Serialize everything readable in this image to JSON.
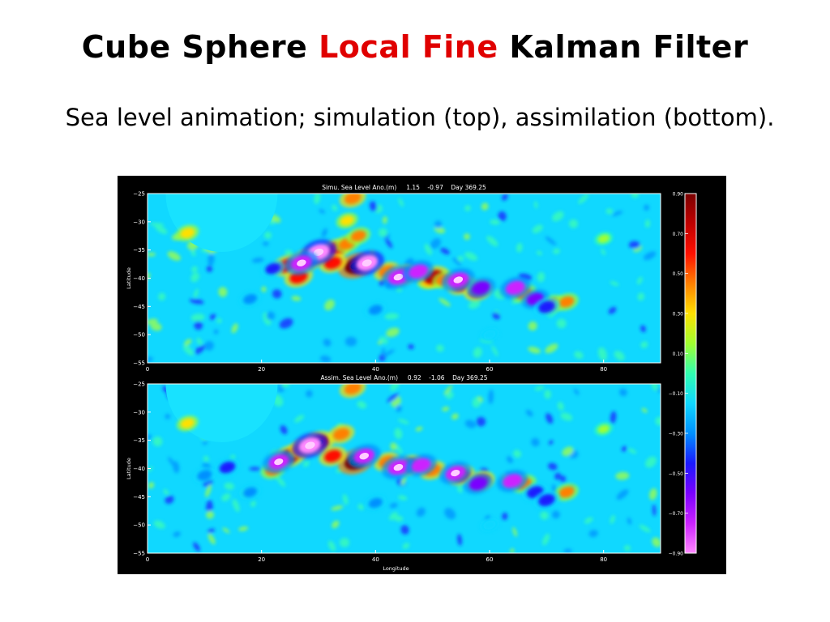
{
  "slide": {
    "title_part1": "Cube Sphere",
    "title_highlight": "Local Fine",
    "title_part2": "Kalman Filter",
    "subtitle": "Sea level animation; simulation (top), assimilation (bottom).",
    "highlight_color": "#e00000"
  },
  "chart_data": [
    {
      "type": "heatmap",
      "title": "Simu. Sea Level Ano.(m)     1.15    -0.97    Day 369.25",
      "xlabel": "",
      "ylabel": "Latitude",
      "xlim": [
        0,
        90
      ],
      "ylim": [
        -55,
        -25
      ],
      "x_ticks": [
        0,
        20,
        40,
        60,
        80
      ],
      "y_ticks": [
        -25,
        -30,
        -35,
        -40,
        -45,
        -50,
        -55
      ],
      "max": 1.15,
      "min": -0.97,
      "day": 369.25,
      "features": [
        {
          "lon": 36.5,
          "lat": -37.8,
          "value": 0.9
        },
        {
          "lon": 28.0,
          "lat": -36.8,
          "value": 0.75
        },
        {
          "lon": 33.0,
          "lat": -34.9,
          "value": 0.6
        },
        {
          "lon": 32.5,
          "lat": -37.3,
          "value": 0.55
        },
        {
          "lon": 24.5,
          "lat": -37.8,
          "value": 0.65
        },
        {
          "lon": 26.5,
          "lat": -39.8,
          "value": 0.6
        },
        {
          "lon": 35.0,
          "lat": -33.9,
          "value": 0.45
        },
        {
          "lon": 37.0,
          "lat": -32.5,
          "value": 0.4
        },
        {
          "lon": 42.0,
          "lat": -38.8,
          "value": 0.5
        },
        {
          "lon": 45.0,
          "lat": -39.4,
          "value": 0.55
        },
        {
          "lon": 49.5,
          "lat": -40.3,
          "value": 0.45
        },
        {
          "lon": 50.2,
          "lat": -39.8,
          "value": 0.7
        },
        {
          "lon": 52.0,
          "lat": -40.3,
          "value": 0.4
        },
        {
          "lon": 55.0,
          "lat": -41.2,
          "value": 0.55
        },
        {
          "lon": 58.0,
          "lat": -42.2,
          "value": 0.6
        },
        {
          "lon": 66.0,
          "lat": -42.7,
          "value": 0.45
        },
        {
          "lon": 71.0,
          "lat": -44.6,
          "value": 0.45
        },
        {
          "lon": 73.5,
          "lat": -44.2,
          "value": 0.4
        },
        {
          "lon": 7.0,
          "lat": -32.0,
          "value": 0.35
        },
        {
          "lon": 36.0,
          "lat": -25.8,
          "value": 0.5
        },
        {
          "lon": 35.0,
          "lat": -29.8,
          "value": 0.3
        },
        {
          "lon": 30.0,
          "lat": -35.4,
          "value": -0.9
        },
        {
          "lon": 27.0,
          "lat": -37.3,
          "value": -0.8
        },
        {
          "lon": 38.5,
          "lat": -37.3,
          "value": -0.85
        },
        {
          "lon": 44.0,
          "lat": -39.8,
          "value": -0.8
        },
        {
          "lon": 47.5,
          "lat": -38.8,
          "value": -0.7
        },
        {
          "lon": 54.5,
          "lat": -40.3,
          "value": -0.8
        },
        {
          "lon": 58.5,
          "lat": -41.7,
          "value": -0.6
        },
        {
          "lon": 64.5,
          "lat": -41.7,
          "value": -0.7
        },
        {
          "lon": 68.0,
          "lat": -43.7,
          "value": -0.55
        },
        {
          "lon": 70.0,
          "lat": -45.1,
          "value": -0.5
        },
        {
          "lon": 22.0,
          "lat": -38.3,
          "value": -0.4
        },
        {
          "lon": 40.0,
          "lat": -45.6,
          "value": -0.3
        },
        {
          "lon": 18.0,
          "lat": -43.7,
          "value": -0.3
        },
        {
          "lon": 80.0,
          "lat": -33.0,
          "value": 0.15
        },
        {
          "lon": 60.0,
          "lat": -50.0,
          "value": -0.2
        }
      ]
    },
    {
      "type": "heatmap",
      "title": "Assim. Sea Level Ano.(m)     0.92    -1.06    Day 369.25",
      "xlabel": "Longitude",
      "ylabel": "Latitude",
      "xlim": [
        0,
        90
      ],
      "ylim": [
        -55,
        -25
      ],
      "x_ticks": [
        0,
        20,
        40,
        60,
        80
      ],
      "y_ticks": [
        -25,
        -30,
        -35,
        -40,
        -45,
        -50,
        -55
      ],
      "max": 0.92,
      "min": -1.06,
      "day": 369.25,
      "features": [
        {
          "lon": 36.5,
          "lat": -38.8,
          "value": 0.9
        },
        {
          "lon": 30.0,
          "lat": -35.4,
          "value": 0.75
        },
        {
          "lon": 25.0,
          "lat": -37.8,
          "value": 0.7
        },
        {
          "lon": 27.0,
          "lat": -36.5,
          "value": 0.5
        },
        {
          "lon": 34.0,
          "lat": -33.9,
          "value": 0.5
        },
        {
          "lon": 32.5,
          "lat": -37.8,
          "value": 0.55
        },
        {
          "lon": 42.0,
          "lat": -38.8,
          "value": 0.5
        },
        {
          "lon": 46.0,
          "lat": -39.4,
          "value": 0.55
        },
        {
          "lon": 50.0,
          "lat": -40.3,
          "value": 0.5
        },
        {
          "lon": 55.0,
          "lat": -41.2,
          "value": 0.55
        },
        {
          "lon": 58.5,
          "lat": -42.2,
          "value": 0.55
        },
        {
          "lon": 66.0,
          "lat": -42.7,
          "value": 0.45
        },
        {
          "lon": 73.5,
          "lat": -44.2,
          "value": 0.4
        },
        {
          "lon": 36.0,
          "lat": -25.8,
          "value": 0.5
        },
        {
          "lon": 7.0,
          "lat": -32.0,
          "value": 0.3
        },
        {
          "lon": 22.0,
          "lat": -40.3,
          "value": 0.4
        },
        {
          "lon": 28.5,
          "lat": -35.9,
          "value": -0.9
        },
        {
          "lon": 23.0,
          "lat": -38.8,
          "value": -0.75
        },
        {
          "lon": 38.0,
          "lat": -37.8,
          "value": -0.8
        },
        {
          "lon": 44.0,
          "lat": -39.8,
          "value": -0.8
        },
        {
          "lon": 48.0,
          "lat": -39.4,
          "value": -0.7
        },
        {
          "lon": 54.0,
          "lat": -40.8,
          "value": -0.75
        },
        {
          "lon": 58.0,
          "lat": -42.7,
          "value": -0.6
        },
        {
          "lon": 64.0,
          "lat": -42.2,
          "value": -0.7
        },
        {
          "lon": 68.0,
          "lat": -44.2,
          "value": -0.5
        },
        {
          "lon": 70.0,
          "lat": -45.6,
          "value": -0.5
        },
        {
          "lon": 14.0,
          "lat": -39.8,
          "value": -0.45
        },
        {
          "lon": 10.0,
          "lat": -41.2,
          "value": -0.35
        },
        {
          "lon": 40.0,
          "lat": -46.1,
          "value": -0.3
        },
        {
          "lon": 18.0,
          "lat": -44.2,
          "value": -0.3
        },
        {
          "lon": 80.0,
          "lat": -33.0,
          "value": 0.15
        },
        {
          "lon": 60.0,
          "lat": -50.0,
          "value": -0.2
        }
      ]
    }
  ],
  "colorbar": {
    "ticks": [
      0.9,
      0.7,
      0.5,
      0.3,
      0.1,
      -0.1,
      -0.3,
      -0.5,
      -0.7,
      -0.9
    ],
    "tick_labels": [
      "0.90",
      "0.70",
      "0.50",
      "0.30",
      "0.10",
      "−0.10",
      "−0.30",
      "−0.50",
      "−0.70",
      "−0.90"
    ],
    "range": [
      -0.9,
      0.9
    ],
    "colors": [
      "#ff88ff",
      "#cc22ff",
      "#7a00ff",
      "#1a1aff",
      "#0090ff",
      "#10d8ff",
      "#30ffb0",
      "#a0ff30",
      "#ffe000",
      "#ff8000",
      "#ff1000",
      "#c00000",
      "#7a0000"
    ]
  }
}
